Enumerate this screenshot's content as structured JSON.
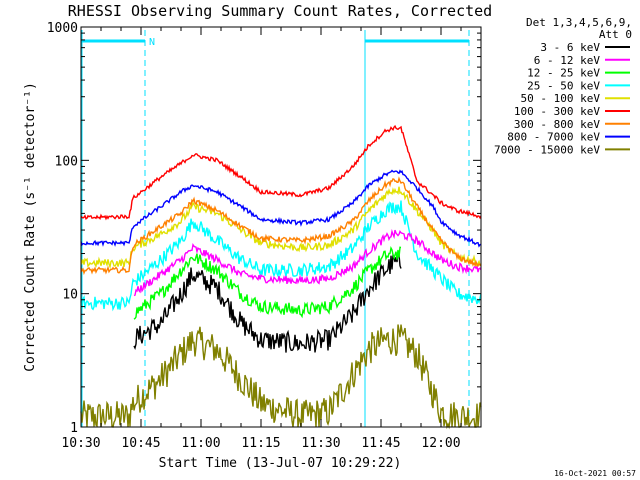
{
  "chart_data": {
    "type": "line",
    "title": "RHESSI Observing Summary Count Rates, Corrected",
    "xlabel": "Start Time (13-Jul-07 10:29:22)",
    "ylabel": "Corrected Count Rate (s⁻¹ detector⁻¹)",
    "yscale": "log",
    "ylim": [
      1,
      1000
    ],
    "xlim_minutes": [
      0,
      100
    ],
    "x_ticks": [
      {
        "label": "10:30",
        "minute": 0
      },
      {
        "label": "10:45",
        "minute": 15
      },
      {
        "label": "11:00",
        "minute": 30
      },
      {
        "label": "11:15",
        "minute": 45
      },
      {
        "label": "11:30",
        "minute": 60
      },
      {
        "label": "11:45",
        "minute": 75
      },
      {
        "label": "12:00",
        "minute": 90
      }
    ],
    "y_ticks": [
      {
        "label": "1",
        "value": 1
      },
      {
        "label": "10",
        "value": 10
      },
      {
        "label": "100",
        "value": 100
      },
      {
        "label": "1000",
        "value": 1000
      }
    ],
    "legend_header": [
      "Det 1,3,4,5,6,9,",
      "Att 0"
    ],
    "legend_position": "right",
    "colors": {
      "flag": "#00e0ff",
      "s1": "#000000",
      "s2": "#ff00ff",
      "s3": "#00ff00",
      "s4": "#00ffff",
      "s5": "#e0e000",
      "s6": "#ff0000",
      "s7": "#ff8000",
      "s8": "#0000ff",
      "s9": "#808000"
    },
    "flags": {
      "label": "N",
      "segments": [
        [
          0,
          16
        ],
        [
          71,
          97
        ]
      ],
      "dashed_lines_minutes": [
        16,
        97
      ],
      "solid_lines_minutes": [
        71
      ]
    },
    "series_x_minutes": [
      0,
      12,
      13,
      20,
      25,
      28,
      34,
      40,
      45,
      55,
      62,
      68,
      72,
      76,
      78,
      80,
      84,
      88,
      90,
      94,
      100
    ],
    "series": [
      {
        "name": "3 - 6 keV",
        "color": "#000000",
        "noise": 0.08,
        "values": [
          null,
          null,
          4.5,
          6,
          10,
          14,
          11,
          6,
          4.5,
          4.2,
          4.5,
          7,
          11,
          15,
          17,
          17,
          null,
          null,
          null,
          null,
          null
        ]
      },
      {
        "name": "6 - 12 keV",
        "color": "#ff00ff",
        "noise": 0.03,
        "values": [
          null,
          null,
          10,
          14,
          18,
          22,
          18,
          14,
          13,
          12.5,
          13,
          16,
          21,
          26,
          28,
          28,
          25,
          20,
          18,
          16,
          15
        ]
      },
      {
        "name": "12 - 25 keV",
        "color": "#00ff00",
        "noise": 0.05,
        "values": [
          null,
          null,
          7,
          10,
          15,
          19,
          15,
          10,
          8,
          7.5,
          8,
          11,
          15,
          19,
          20,
          20,
          null,
          null,
          null,
          null,
          null
        ]
      },
      {
        "name": "25 - 50 keV",
        "color": "#00ffff",
        "noise": 0.05,
        "values": [
          8.5,
          8.5,
          12,
          18,
          25,
          35,
          25,
          18,
          15,
          15,
          16,
          22,
          32,
          42,
          45,
          45,
          20,
          15,
          13,
          10,
          9
        ]
      },
      {
        "name": "50 - 100 keV",
        "color": "#e0e000",
        "noise": 0.03,
        "values": [
          17,
          17,
          22,
          28,
          35,
          45,
          40,
          30,
          24,
          22,
          23,
          30,
          42,
          55,
          60,
          60,
          42,
          30,
          24,
          19,
          17
        ]
      },
      {
        "name": "100 - 300 keV",
        "color": "#ff0000",
        "noise": 0.015,
        "values": [
          37,
          38,
          52,
          75,
          95,
          110,
          100,
          75,
          58,
          55,
          62,
          90,
          130,
          165,
          175,
          175,
          70,
          55,
          48,
          42,
          38
        ]
      },
      {
        "name": "300 - 800 keV",
        "color": "#ff8000",
        "noise": 0.02,
        "values": [
          15,
          15,
          23,
          32,
          40,
          50,
          42,
          32,
          26,
          25,
          27,
          35,
          50,
          65,
          70,
          70,
          45,
          30,
          25,
          19,
          16
        ]
      },
      {
        "name": "800 - 7000 keV",
        "color": "#0000ff",
        "noise": 0.015,
        "values": [
          24,
          24,
          32,
          45,
          58,
          65,
          58,
          45,
          36,
          34,
          36,
          48,
          65,
          78,
          82,
          82,
          62,
          45,
          35,
          28,
          23
        ]
      },
      {
        "name": "7000 - 15000 keV",
        "color": "#808000",
        "noise": 0.12,
        "values": [
          1.2,
          1.2,
          1.5,
          2.3,
          3.5,
          4.5,
          3.8,
          2.3,
          1.5,
          1.2,
          1.3,
          2.5,
          3.8,
          4.5,
          4.5,
          4.5,
          3.5,
          1.8,
          1.3,
          1.2,
          1.2
        ]
      }
    ],
    "timestamp": "16-Oct-2021 00:57"
  }
}
